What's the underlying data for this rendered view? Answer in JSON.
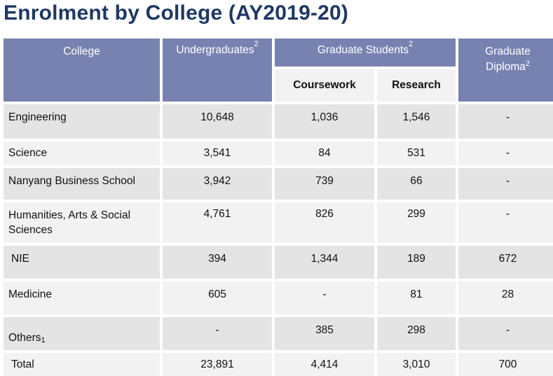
{
  "title": "Enrolment by College (AY2019-20)",
  "headers": {
    "college": "College",
    "undergraduates": "Undergraduates",
    "undergraduates_sup": "2",
    "graduate_students": "Graduate Students",
    "graduate_students_sup": "2",
    "coursework": "Coursework",
    "research": "Research",
    "diploma_line1": "Graduate",
    "diploma_line2": "Diploma",
    "diploma_sup": "2"
  },
  "rows": [
    {
      "college": "Engineering",
      "sup": "",
      "ug": "10,648",
      "cw": "1,036",
      "rs": "1,546",
      "gd": "-"
    },
    {
      "college": "Science",
      "sup": "",
      "ug": "3,541",
      "cw": "84",
      "rs": "531",
      "gd": "-"
    },
    {
      "college": "Nanyang Business School",
      "sup": "",
      "ug": "3,942",
      "cw": "739",
      "rs": "66",
      "gd": "-"
    },
    {
      "college": "Humanities, Arts & Social Sciences",
      "sup": "",
      "ug": "4,761",
      "cw": "826",
      "rs": "299",
      "gd": "-"
    },
    {
      "college": "NIE",
      "sup": "",
      "ug": "394",
      "cw": "1,344",
      "rs": "189",
      "gd": "672"
    },
    {
      "college": "Medicine",
      "sup": "",
      "ug": "605",
      "cw": "-",
      "rs": "81",
      "gd": "28"
    },
    {
      "college": "Others",
      "sup": "1",
      "ug": "-",
      "cw": "385",
      "rs": "298",
      "gd": "-"
    },
    {
      "college": "Total",
      "sup": "",
      "ug": "23,891",
      "cw": "4,414",
      "rs": "3,010",
      "gd": "700"
    }
  ]
}
